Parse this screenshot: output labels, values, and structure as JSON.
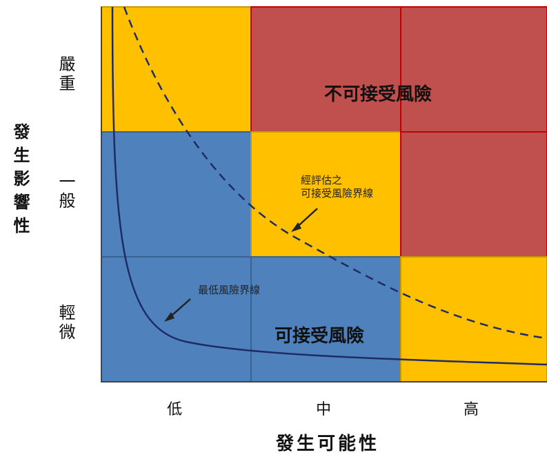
{
  "y_axis": {
    "title": "發生影響性",
    "levels": [
      "嚴重",
      "一般",
      "輕微"
    ]
  },
  "x_axis": {
    "title": "發生可能性",
    "levels": [
      "低",
      "中",
      "高"
    ]
  },
  "zones": {
    "unacceptable": "不可接受風險",
    "acceptable": "可接受風險"
  },
  "annotations": {
    "evaluated_line_1": "經評估之",
    "evaluated_line_2": "可接受風險界線",
    "minimum_line": "最低風險界線"
  },
  "colors": {
    "yellow": "#FFC000",
    "red": "#C0504D",
    "blue": "#4F81BD",
    "curve": "#1F2C64"
  }
}
